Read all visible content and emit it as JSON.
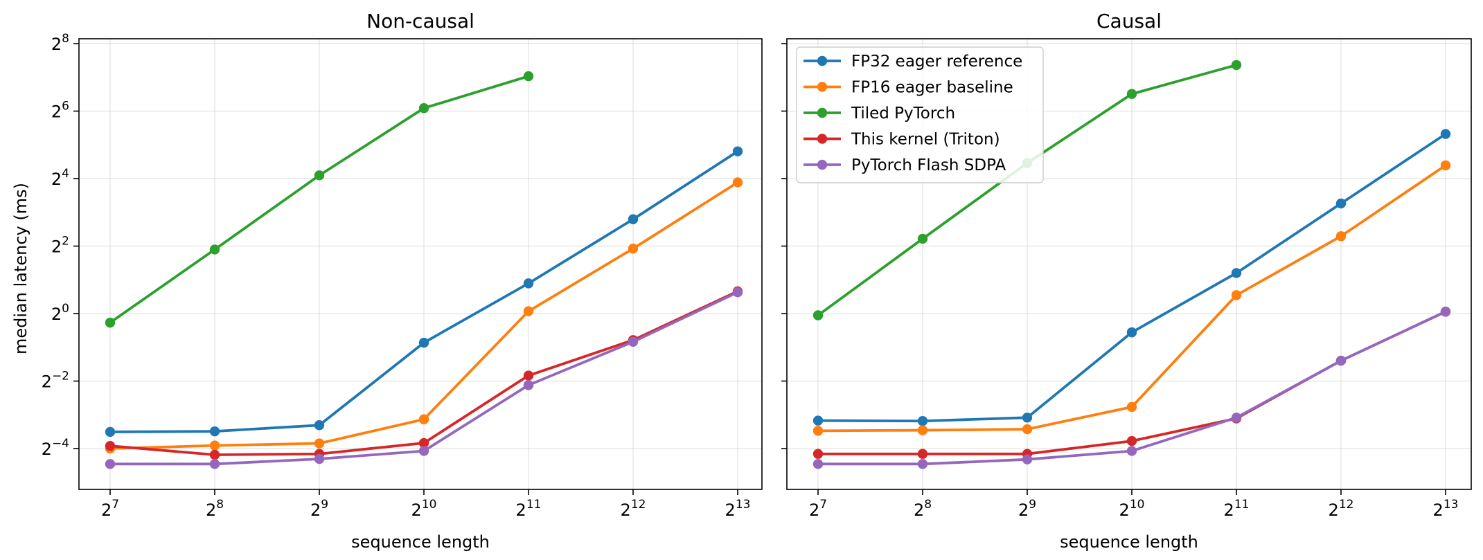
{
  "chart_data": {
    "type": "line",
    "ylabel": "median latency (ms)",
    "y_scale": "log2",
    "x_scale": "log2",
    "x": [
      128,
      256,
      512,
      1024,
      2048,
      4096,
      8192
    ],
    "x_tick_labels": [
      {
        "base": "2",
        "exp": "7"
      },
      {
        "base": "2",
        "exp": "8"
      },
      {
        "base": "2",
        "exp": "9"
      },
      {
        "base": "2",
        "exp": "10"
      },
      {
        "base": "2",
        "exp": "11"
      },
      {
        "base": "2",
        "exp": "12"
      },
      {
        "base": "2",
        "exp": "13"
      }
    ],
    "y_tick_labels": [
      {
        "base": "2",
        "exp": "−4",
        "value": 0.0625
      },
      {
        "base": "2",
        "exp": "−2",
        "value": 0.25
      },
      {
        "base": "2",
        "exp": "0",
        "value": 1
      },
      {
        "base": "2",
        "exp": "2",
        "value": 4
      },
      {
        "base": "2",
        "exp": "4",
        "value": 16
      },
      {
        "base": "2",
        "exp": "6",
        "value": 64
      },
      {
        "base": "2",
        "exp": "8",
        "value": 256
      }
    ],
    "ylim": [
      0.03,
      290
    ],
    "grid": true,
    "legend_position": "top-left of right panel",
    "series_styles": [
      {
        "name": "FP32 eager reference",
        "color": "#1f77b4"
      },
      {
        "name": "FP16 eager baseline",
        "color": "#ff7f0e"
      },
      {
        "name": "Tiled PyTorch",
        "color": "#2ca02c"
      },
      {
        "name": "This kernel (Triton)",
        "color": "#d62728"
      },
      {
        "name": "PyTorch Flash SDPA",
        "color": "#9467bd"
      }
    ],
    "panels": [
      {
        "title": "Non-causal",
        "xlabel": "sequence length",
        "series": [
          {
            "name": "FP32 eager reference",
            "values": [
              0.088,
              0.089,
              0.101,
              0.55,
              1.86,
              6.94,
              28.0
            ]
          },
          {
            "name": "FP16 eager baseline",
            "values": [
              0.0625,
              0.0665,
              0.0695,
              0.114,
              1.05,
              3.8,
              14.8
            ]
          },
          {
            "name": "Tiled PyTorch",
            "values": [
              0.83,
              3.73,
              17.1,
              68.0,
              131.0,
              null,
              null
            ]
          },
          {
            "name": "This kernel (Triton)",
            "values": [
              0.066,
              0.055,
              0.056,
              0.07,
              0.28,
              0.58,
              1.58
            ]
          },
          {
            "name": "PyTorch Flash SDPA",
            "values": [
              0.0455,
              0.0455,
              0.0505,
              0.0595,
              0.23,
              0.56,
              1.55
            ]
          }
        ]
      },
      {
        "title": "Causal",
        "xlabel": "sequence length",
        "series": [
          {
            "name": "FP32 eager reference",
            "values": [
              0.111,
              0.11,
              0.118,
              0.68,
              2.3,
              9.6,
              40.0
            ]
          },
          {
            "name": "FP16 eager baseline",
            "values": [
              0.09,
              0.091,
              0.093,
              0.147,
              1.46,
              4.9,
              21.0
            ]
          },
          {
            "name": "Tiled PyTorch",
            "values": [
              0.965,
              4.65,
              22.0,
              91.0,
              165.0,
              null,
              null
            ]
          },
          {
            "name": "This kernel (Triton)",
            "values": [
              0.056,
              0.056,
              0.056,
              0.073,
              0.116,
              0.38,
              1.04
            ]
          },
          {
            "name": "PyTorch Flash SDPA",
            "values": [
              0.0455,
              0.0455,
              0.05,
              0.0595,
              0.118,
              0.38,
              1.04
            ]
          }
        ]
      }
    ]
  }
}
